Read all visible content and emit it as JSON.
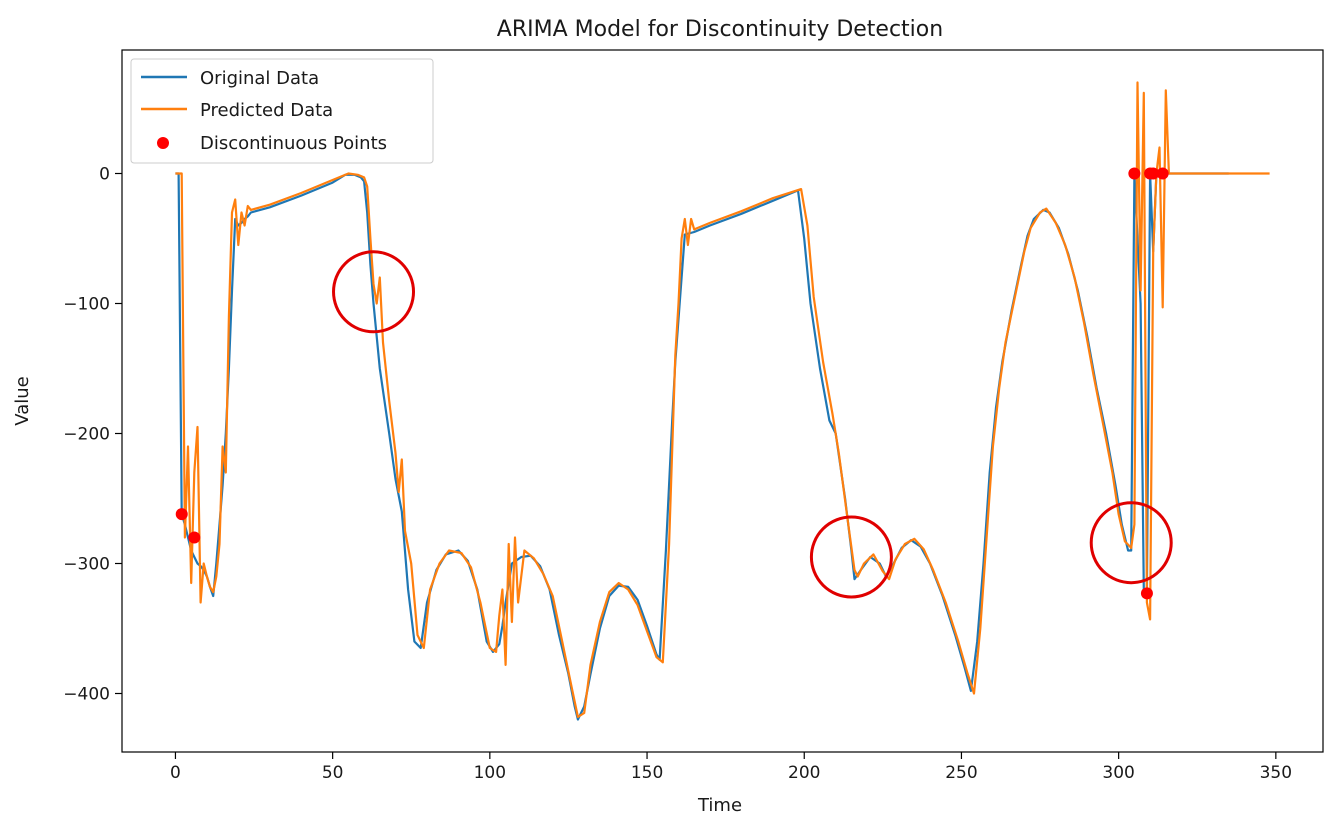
{
  "chart_data": {
    "type": "line",
    "title": "ARIMA Model for Discontinuity Detection",
    "xlabel": "Time",
    "ylabel": "Value",
    "xlim": [
      -17,
      365
    ],
    "ylim": [
      -445,
      95
    ],
    "xticks": [
      0,
      50,
      100,
      150,
      200,
      250,
      300,
      350
    ],
    "xtick_labels": [
      "0",
      "50",
      "100",
      "150",
      "200",
      "250",
      "300",
      "350"
    ],
    "yticks": [
      0,
      -100,
      -200,
      -300,
      -400
    ],
    "ytick_labels": [
      "0",
      "−100",
      "−200",
      "−300",
      "−400"
    ],
    "legend_position": "top-left",
    "grid": false,
    "series": [
      {
        "name": "Original Data",
        "color": "#1f77b4",
        "points": [
          [
            0,
            0
          ],
          [
            1,
            0
          ],
          [
            2,
            -262
          ],
          [
            3,
            -270
          ],
          [
            4,
            -280
          ],
          [
            5,
            -290
          ],
          [
            6,
            -295
          ],
          [
            7,
            -300
          ],
          [
            8,
            -302
          ],
          [
            9,
            -305
          ],
          [
            10,
            -310
          ],
          [
            11,
            -318
          ],
          [
            12,
            -325
          ],
          [
            13,
            -300
          ],
          [
            14,
            -270
          ],
          [
            15,
            -240
          ],
          [
            16,
            -200
          ],
          [
            17,
            -150
          ],
          [
            18,
            -90
          ],
          [
            19,
            -35
          ],
          [
            20,
            -40
          ],
          [
            21,
            -38
          ],
          [
            22,
            -35
          ],
          [
            23,
            -33
          ],
          [
            24,
            -30
          ],
          [
            30,
            -26
          ],
          [
            40,
            -17
          ],
          [
            50,
            -7
          ],
          [
            54,
            -1
          ],
          [
            57,
            -1
          ],
          [
            59,
            -3
          ],
          [
            60,
            -6
          ],
          [
            61,
            -30
          ],
          [
            62,
            -70
          ],
          [
            63,
            -100
          ],
          [
            65,
            -150
          ],
          [
            68,
            -200
          ],
          [
            70,
            -235
          ],
          [
            72,
            -260
          ],
          [
            74,
            -320
          ],
          [
            76,
            -360
          ],
          [
            78,
            -365
          ],
          [
            80,
            -330
          ],
          [
            83,
            -305
          ],
          [
            86,
            -293
          ],
          [
            90,
            -290
          ],
          [
            93,
            -298
          ],
          [
            96,
            -320
          ],
          [
            99,
            -360
          ],
          [
            101,
            -368
          ],
          [
            103,
            -362
          ],
          [
            104,
            -348
          ],
          [
            105,
            -330
          ],
          [
            107,
            -300
          ],
          [
            110,
            -295
          ],
          [
            113,
            -294
          ],
          [
            116,
            -302
          ],
          [
            119,
            -320
          ],
          [
            122,
            -355
          ],
          [
            125,
            -385
          ],
          [
            127,
            -410
          ],
          [
            128,
            -420
          ],
          [
            130,
            -410
          ],
          [
            132,
            -385
          ],
          [
            135,
            -350
          ],
          [
            138,
            -325
          ],
          [
            141,
            -317
          ],
          [
            144,
            -318
          ],
          [
            147,
            -328
          ],
          [
            150,
            -348
          ],
          [
            153,
            -370
          ],
          [
            154,
            -374
          ],
          [
            156,
            -290
          ],
          [
            158,
            -190
          ],
          [
            159,
            -145
          ],
          [
            161,
            -80
          ],
          [
            162,
            -47
          ],
          [
            165,
            -45
          ],
          [
            170,
            -40
          ],
          [
            180,
            -31
          ],
          [
            190,
            -21
          ],
          [
            198,
            -13
          ],
          [
            200,
            -50
          ],
          [
            202,
            -100
          ],
          [
            205,
            -150
          ],
          [
            208,
            -190
          ],
          [
            210,
            -200
          ],
          [
            213,
            -250
          ],
          [
            215,
            -290
          ],
          [
            216,
            -312
          ],
          [
            218,
            -305
          ],
          [
            221,
            -295
          ],
          [
            224,
            -300
          ],
          [
            226,
            -310
          ],
          [
            228,
            -302
          ],
          [
            231,
            -288
          ],
          [
            234,
            -282
          ],
          [
            237,
            -287
          ],
          [
            240,
            -300
          ],
          [
            244,
            -325
          ],
          [
            248,
            -355
          ],
          [
            251,
            -380
          ],
          [
            253,
            -398
          ],
          [
            255,
            -360
          ],
          [
            257,
            -300
          ],
          [
            259,
            -230
          ],
          [
            261,
            -180
          ],
          [
            263,
            -145
          ],
          [
            266,
            -105
          ],
          [
            269,
            -70
          ],
          [
            271,
            -48
          ],
          [
            273,
            -35
          ],
          [
            276,
            -28
          ],
          [
            278,
            -30
          ],
          [
            281,
            -42
          ],
          [
            284,
            -62
          ],
          [
            287,
            -90
          ],
          [
            290,
            -125
          ],
          [
            293,
            -165
          ],
          [
            296,
            -200
          ],
          [
            299,
            -240
          ],
          [
            301,
            -270
          ],
          [
            303,
            -290
          ],
          [
            304,
            -290
          ],
          [
            305,
            0
          ],
          [
            306,
            -50
          ],
          [
            307,
            -100
          ],
          [
            308,
            -320
          ],
          [
            309,
            -322
          ],
          [
            310,
            0
          ],
          [
            311,
            -60
          ],
          [
            312,
            0
          ],
          [
            313,
            0
          ],
          [
            335,
            0
          ]
        ]
      },
      {
        "name": "Predicted Data",
        "color": "#ff7f0e",
        "points": [
          [
            0,
            0
          ],
          [
            1,
            0
          ],
          [
            2,
            0
          ],
          [
            3,
            -280
          ],
          [
            4,
            -210
          ],
          [
            5,
            -315
          ],
          [
            6,
            -230
          ],
          [
            7,
            -195
          ],
          [
            8,
            -330
          ],
          [
            9,
            -300
          ],
          [
            10,
            -310
          ],
          [
            11,
            -318
          ],
          [
            12,
            -322
          ],
          [
            13,
            -310
          ],
          [
            14,
            -285
          ],
          [
            15,
            -210
          ],
          [
            16,
            -230
          ],
          [
            17,
            -110
          ],
          [
            18,
            -30
          ],
          [
            19,
            -20
          ],
          [
            20,
            -55
          ],
          [
            21,
            -30
          ],
          [
            22,
            -40
          ],
          [
            23,
            -25
          ],
          [
            24,
            -28
          ],
          [
            30,
            -24
          ],
          [
            40,
            -15
          ],
          [
            50,
            -5
          ],
          [
            55,
            0
          ],
          [
            58,
            -1
          ],
          [
            60,
            -3
          ],
          [
            61,
            -10
          ],
          [
            62,
            -50
          ],
          [
            63,
            -85
          ],
          [
            64,
            -100
          ],
          [
            65,
            -80
          ],
          [
            66,
            -130
          ],
          [
            68,
            -175
          ],
          [
            70,
            -215
          ],
          [
            71,
            -245
          ],
          [
            72,
            -220
          ],
          [
            73,
            -275
          ],
          [
            75,
            -300
          ],
          [
            77,
            -355
          ],
          [
            79,
            -365
          ],
          [
            81,
            -320
          ],
          [
            84,
            -300
          ],
          [
            87,
            -290
          ],
          [
            91,
            -292
          ],
          [
            94,
            -303
          ],
          [
            97,
            -330
          ],
          [
            100,
            -365
          ],
          [
            102,
            -368
          ],
          [
            103,
            -340
          ],
          [
            104,
            -320
          ],
          [
            105,
            -378
          ],
          [
            106,
            -285
          ],
          [
            107,
            -345
          ],
          [
            108,
            -280
          ],
          [
            109,
            -330
          ],
          [
            111,
            -290
          ],
          [
            114,
            -296
          ],
          [
            117,
            -308
          ],
          [
            120,
            -325
          ],
          [
            123,
            -360
          ],
          [
            126,
            -395
          ],
          [
            128,
            -418
          ],
          [
            130,
            -415
          ],
          [
            132,
            -378
          ],
          [
            135,
            -345
          ],
          [
            138,
            -322
          ],
          [
            141,
            -315
          ],
          [
            144,
            -320
          ],
          [
            147,
            -332
          ],
          [
            150,
            -352
          ],
          [
            153,
            -372
          ],
          [
            155,
            -376
          ],
          [
            157,
            -285
          ],
          [
            159,
            -140
          ],
          [
            160,
            -100
          ],
          [
            161,
            -50
          ],
          [
            162,
            -35
          ],
          [
            163,
            -55
          ],
          [
            164,
            -35
          ],
          [
            165,
            -43
          ],
          [
            170,
            -38
          ],
          [
            180,
            -29
          ],
          [
            190,
            -19
          ],
          [
            199,
            -12
          ],
          [
            201,
            -40
          ],
          [
            203,
            -95
          ],
          [
            206,
            -145
          ],
          [
            209,
            -185
          ],
          [
            211,
            -215
          ],
          [
            214,
            -270
          ],
          [
            216,
            -305
          ],
          [
            217,
            -310
          ],
          [
            219,
            -300
          ],
          [
            222,
            -293
          ],
          [
            225,
            -306
          ],
          [
            227,
            -312
          ],
          [
            229,
            -297
          ],
          [
            232,
            -285
          ],
          [
            235,
            -281
          ],
          [
            238,
            -289
          ],
          [
            241,
            -305
          ],
          [
            245,
            -330
          ],
          [
            249,
            -360
          ],
          [
            252,
            -385
          ],
          [
            254,
            -400
          ],
          [
            256,
            -350
          ],
          [
            258,
            -280
          ],
          [
            260,
            -210
          ],
          [
            262,
            -165
          ],
          [
            264,
            -130
          ],
          [
            267,
            -95
          ],
          [
            270,
            -60
          ],
          [
            272,
            -42
          ],
          [
            275,
            -30
          ],
          [
            277,
            -27
          ],
          [
            280,
            -38
          ],
          [
            283,
            -55
          ],
          [
            286,
            -80
          ],
          [
            289,
            -115
          ],
          [
            292,
            -155
          ],
          [
            295,
            -192
          ],
          [
            298,
            -230
          ],
          [
            300,
            -262
          ],
          [
            302,
            -283
          ],
          [
            304,
            -288
          ],
          [
            305,
            -270
          ],
          [
            306,
            70
          ],
          [
            307,
            -90
          ],
          [
            308,
            62
          ],
          [
            309,
            -330
          ],
          [
            310,
            -343
          ],
          [
            311,
            -60
          ],
          [
            312,
            0
          ],
          [
            313,
            20
          ],
          [
            314,
            -103
          ],
          [
            315,
            64
          ],
          [
            316,
            0
          ],
          [
            320,
            0
          ],
          [
            348,
            0
          ]
        ]
      },
      {
        "name": "Discontinuous Points",
        "color": "#ff0000",
        "points": [
          [
            2,
            -262
          ],
          [
            6,
            -280
          ],
          [
            305,
            0
          ],
          [
            309,
            -323
          ],
          [
            310,
            0
          ],
          [
            311,
            0
          ],
          [
            314,
            0
          ]
        ]
      }
    ],
    "annotations": [
      {
        "shape": "circle",
        "color": "#e00000",
        "x": 63,
        "y": -91
      },
      {
        "shape": "circle",
        "color": "#e00000",
        "x": 215,
        "y": -295
      },
      {
        "shape": "circle",
        "color": "#e00000",
        "x": 304,
        "y": -284
      }
    ]
  }
}
